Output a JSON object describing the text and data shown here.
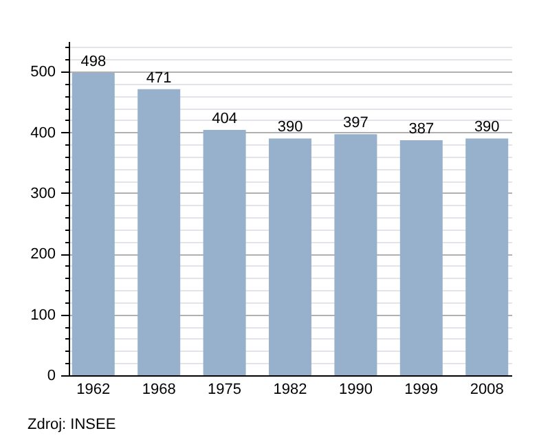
{
  "chart_data": {
    "type": "bar",
    "categories": [
      "1962",
      "1968",
      "1975",
      "1982",
      "1990",
      "1999",
      "2008"
    ],
    "values": [
      498,
      471,
      404,
      390,
      397,
      387,
      390
    ],
    "color": "#97b1cc",
    "data_labels": true,
    "ylim": [
      0,
      550
    ],
    "yticks": [
      0,
      {
        "value": 20,
        "label": null
      },
      {
        "value": 40,
        "label": null
      },
      {
        "value": 60,
        "label": null
      },
      {
        "value": 80,
        "label": null
      },
      100,
      {
        "value": 120,
        "label": null
      },
      {
        "value": 140,
        "label": null
      },
      {
        "value": 160,
        "label": null
      },
      {
        "value": 180,
        "label": null
      },
      200,
      {
        "value": 220,
        "label": null
      },
      {
        "value": 240,
        "label": null
      },
      {
        "value": 260,
        "label": null
      },
      {
        "value": 280,
        "label": null
      },
      300,
      {
        "value": 320,
        "label": null
      },
      {
        "value": 340,
        "label": null
      },
      {
        "value": 360,
        "label": null
      },
      {
        "value": 380,
        "label": null
      },
      400,
      {
        "value": 420,
        "label": null
      },
      {
        "value": 440,
        "label": null
      },
      {
        "value": 460,
        "label": null
      },
      {
        "value": 480,
        "label": null
      },
      500,
      {
        "value": 520,
        "label": null
      },
      {
        "value": 540,
        "label": null
      }
    ],
    "grid": true,
    "annotations": [
      "Zdroj: INSEE"
    ]
  }
}
